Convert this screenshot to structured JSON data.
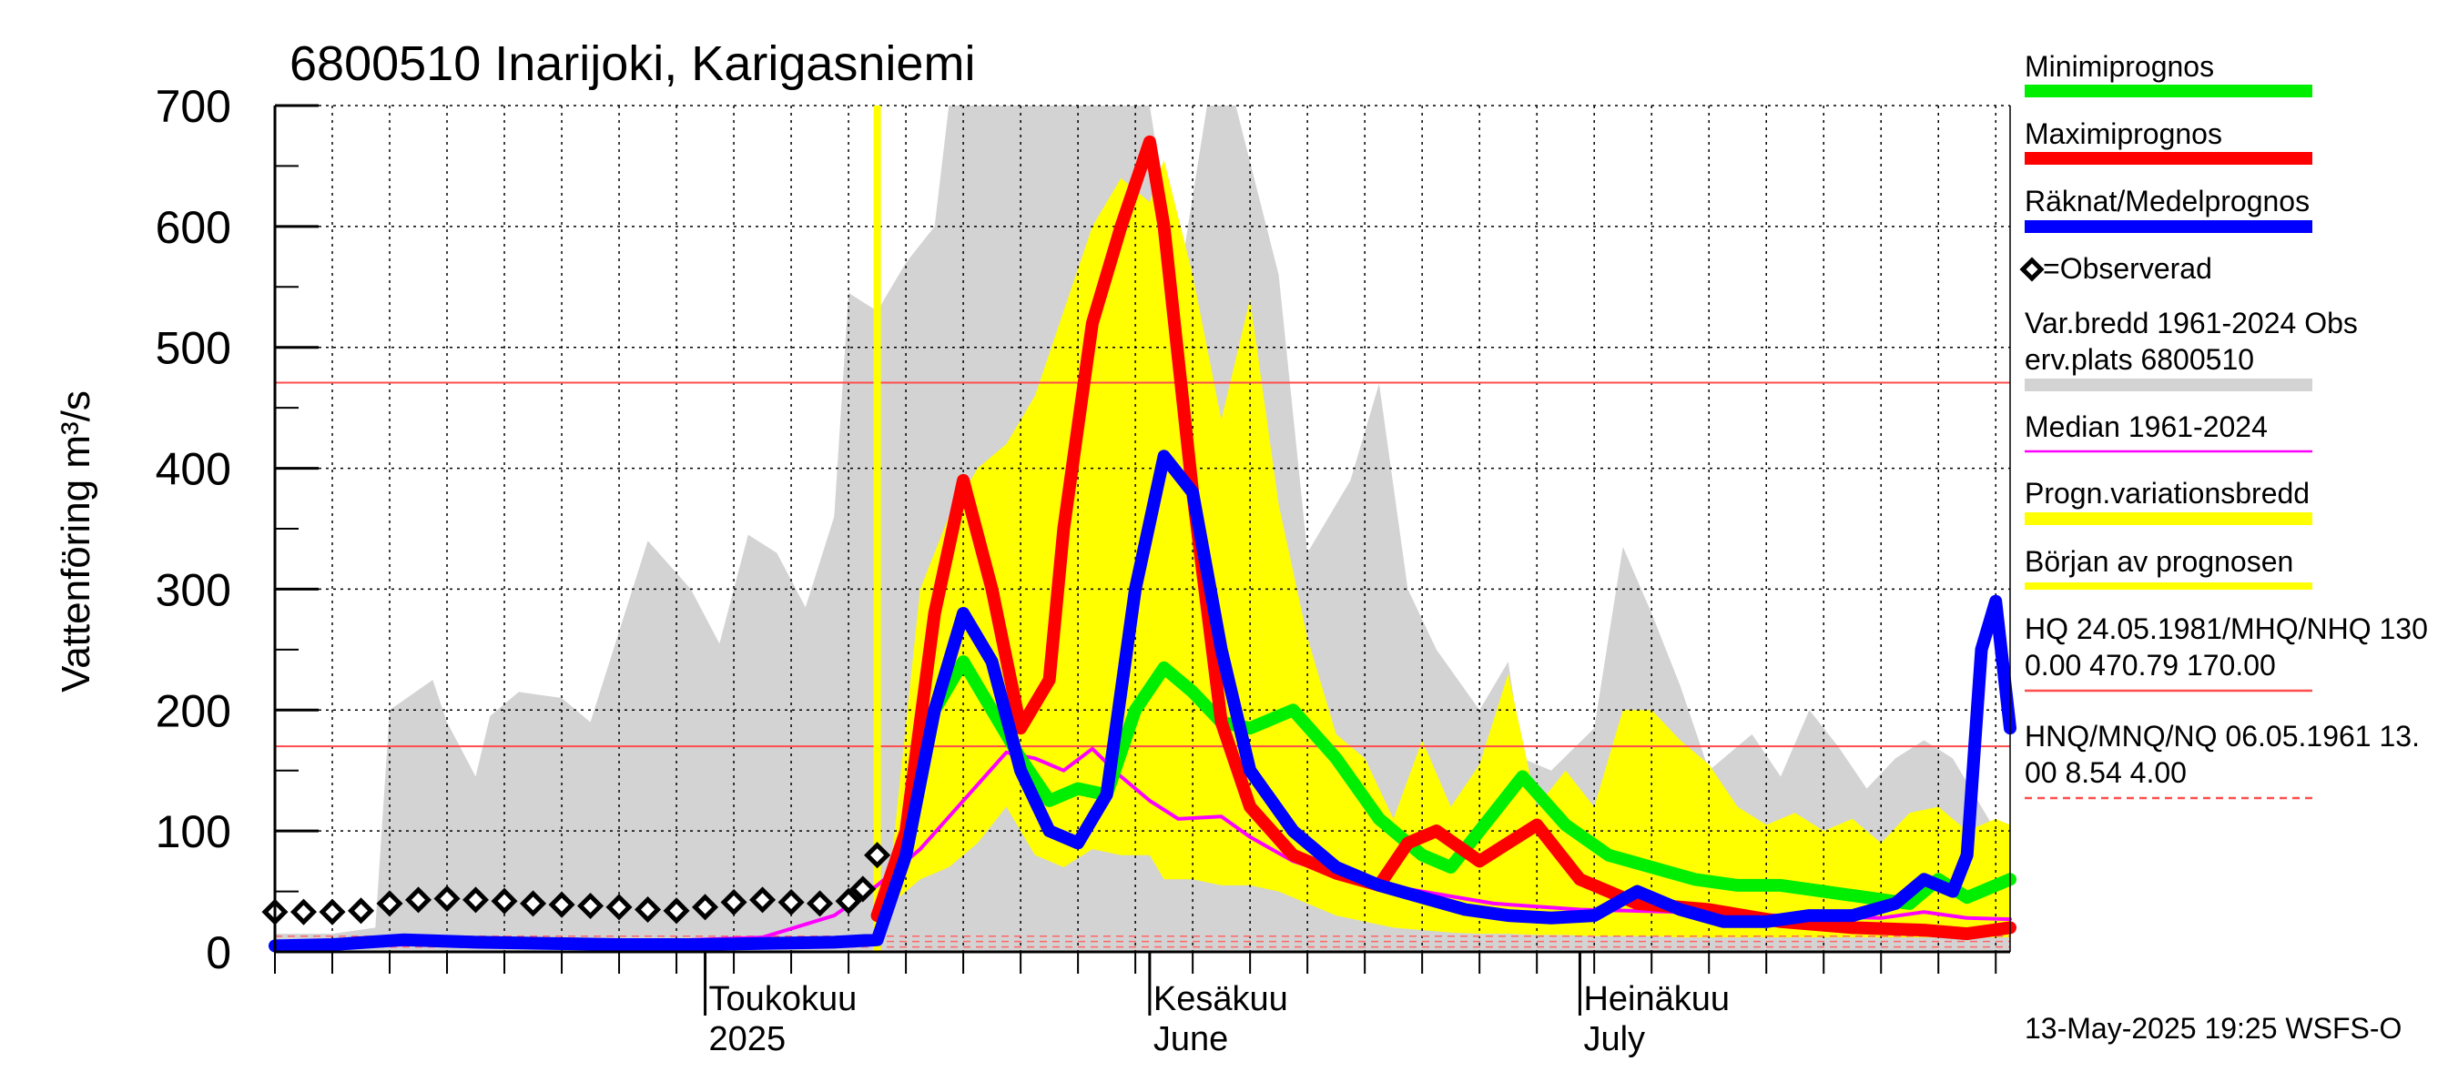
{
  "chart_data": {
    "type": "line",
    "title": "6800510 Inarijoki, Karigasniemi",
    "ylabel": "Vattenföring m³/s",
    "ylim": [
      0,
      700
    ],
    "yticks": [
      0,
      100,
      200,
      300,
      400,
      500,
      600,
      700
    ],
    "x_range": [
      "2025-04-01",
      "2025-07-31"
    ],
    "grid": true,
    "month_labels": [
      {
        "date": "2025-05-01",
        "line1": "Toukokuu",
        "line2": "2025"
      },
      {
        "date": "2025-06-01",
        "line1": "Kesäkuu",
        "line2": "June"
      },
      {
        "date": "2025-07-01",
        "line1": "Heinäkuu",
        "line2": "July"
      }
    ],
    "forecast_start": "2025-05-13",
    "reference_lines": [
      {
        "name": "MHQ",
        "value": 470.79,
        "color": "#ff4d4d"
      },
      {
        "name": "NHQ",
        "value": 170.0,
        "color": "#ff4d4d"
      }
    ],
    "series": [
      {
        "name": "Var.bredd 1961-2024 Obs erv.plats 6800510",
        "kind": "band",
        "color": "#d3d3d3",
        "x": [
          "2025-04-01",
          "2025-04-05",
          "2025-04-08",
          "2025-04-09",
          "2025-04-12",
          "2025-04-13",
          "2025-04-15",
          "2025-04-16",
          "2025-04-18",
          "2025-04-21",
          "2025-04-23",
          "2025-04-27",
          "2025-04-30",
          "2025-05-02",
          "2025-05-04",
          "2025-05-06",
          "2025-05-08",
          "2025-05-10",
          "2025-05-11",
          "2025-05-13",
          "2025-05-15",
          "2025-05-17",
          "2025-05-18",
          "2025-05-20",
          "2025-05-25",
          "2025-05-30",
          "2025-06-01",
          "2025-06-03",
          "2025-06-05",
          "2025-06-07",
          "2025-06-10",
          "2025-06-12",
          "2025-06-15",
          "2025-06-17",
          "2025-06-19",
          "2025-06-21",
          "2025-06-24",
          "2025-06-26",
          "2025-06-27",
          "2025-06-29",
          "2025-07-02",
          "2025-07-04",
          "2025-07-06",
          "2025-07-08",
          "2025-07-10",
          "2025-07-13",
          "2025-07-15",
          "2025-07-17",
          "2025-07-19",
          "2025-07-21",
          "2025-07-23",
          "2025-07-25",
          "2025-07-27",
          "2025-07-29",
          "2025-07-31"
        ],
        "upper": [
          15,
          15,
          20,
          200,
          225,
          190,
          145,
          195,
          215,
          210,
          190,
          340,
          300,
          255,
          345,
          330,
          285,
          360,
          545,
          530,
          570,
          600,
          700,
          700,
          700,
          700,
          700,
          550,
          700,
          700,
          560,
          330,
          390,
          470,
          300,
          250,
          200,
          240,
          160,
          150,
          185,
          335,
          280,
          220,
          150,
          180,
          145,
          200,
          170,
          135,
          160,
          175,
          160,
          120,
          80
        ],
        "lower": [
          0,
          0,
          0,
          0,
          0,
          0,
          0,
          0,
          0,
          0,
          0,
          0,
          0,
          0,
          0,
          0,
          0,
          0,
          0,
          0,
          0,
          0,
          0,
          0,
          0,
          0,
          0,
          0,
          0,
          0,
          0,
          0,
          0,
          0,
          0,
          0,
          0,
          0,
          0,
          0,
          0,
          0,
          0,
          0,
          0,
          0,
          0,
          0,
          0,
          0,
          0,
          0,
          0,
          0,
          0
        ]
      },
      {
        "name": "Progn.variationsbredd",
        "kind": "band",
        "color": "#ffff00",
        "x": [
          "2025-05-13",
          "2025-05-14",
          "2025-05-16",
          "2025-05-18",
          "2025-05-20",
          "2025-05-22",
          "2025-05-24",
          "2025-05-26",
          "2025-05-28",
          "2025-05-30",
          "2025-06-01",
          "2025-06-02",
          "2025-06-04",
          "2025-06-06",
          "2025-06-08",
          "2025-06-10",
          "2025-06-12",
          "2025-06-14",
          "2025-06-16",
          "2025-06-18",
          "2025-06-20",
          "2025-06-22",
          "2025-06-24",
          "2025-06-26",
          "2025-06-28",
          "2025-06-30",
          "2025-07-02",
          "2025-07-04",
          "2025-07-06",
          "2025-07-08",
          "2025-07-10",
          "2025-07-12",
          "2025-07-14",
          "2025-07-16",
          "2025-07-18",
          "2025-07-20",
          "2025-07-22",
          "2025-07-24",
          "2025-07-26",
          "2025-07-28",
          "2025-07-30",
          "2025-07-31"
        ],
        "upper": [
          40,
          75,
          300,
          360,
          400,
          420,
          460,
          530,
          600,
          640,
          620,
          655,
          560,
          440,
          540,
          370,
          260,
          180,
          160,
          110,
          175,
          120,
          155,
          230,
          120,
          150,
          120,
          200,
          200,
          175,
          155,
          120,
          105,
          115,
          100,
          110,
          90,
          115,
          120,
          100,
          110,
          105
        ],
        "lower": [
          30,
          40,
          60,
          70,
          90,
          120,
          80,
          70,
          85,
          80,
          80,
          60,
          60,
          55,
          55,
          50,
          40,
          30,
          25,
          20,
          18,
          16,
          15,
          15,
          14,
          14,
          13,
          13,
          13,
          12,
          12,
          12,
          12,
          12,
          12,
          12,
          12,
          12,
          12,
          12,
          12,
          12
        ]
      },
      {
        "name": "Observerad",
        "kind": "markers",
        "color": "#000000",
        "x": [
          "2025-04-01",
          "2025-04-03",
          "2025-04-05",
          "2025-04-07",
          "2025-04-09",
          "2025-04-11",
          "2025-04-13",
          "2025-04-15",
          "2025-04-17",
          "2025-04-19",
          "2025-04-21",
          "2025-04-23",
          "2025-04-25",
          "2025-04-27",
          "2025-04-29",
          "2025-05-01",
          "2025-05-03",
          "2025-05-05",
          "2025-05-07",
          "2025-05-09",
          "2025-05-11",
          "2025-05-12",
          "2025-05-13"
        ],
        "y": [
          33,
          33,
          33,
          34,
          40,
          43,
          44,
          43,
          42,
          40,
          39,
          38,
          37,
          35,
          34,
          37,
          41,
          43,
          41,
          40,
          42,
          52,
          80
        ]
      },
      {
        "name": "Median 1961-2024",
        "kind": "line",
        "color": "#ff00ff",
        "width": 4,
        "x": [
          "2025-04-01",
          "2025-04-10",
          "2025-04-20",
          "2025-04-28",
          "2025-05-05",
          "2025-05-10",
          "2025-05-13",
          "2025-05-16",
          "2025-05-19",
          "2025-05-22",
          "2025-05-24",
          "2025-05-26",
          "2025-05-28",
          "2025-05-30",
          "2025-06-01",
          "2025-06-03",
          "2025-06-06",
          "2025-06-08",
          "2025-06-11",
          "2025-06-15",
          "2025-06-20",
          "2025-06-25",
          "2025-07-01",
          "2025-07-08",
          "2025-07-15",
          "2025-07-22",
          "2025-07-25",
          "2025-07-28",
          "2025-07-31"
        ],
        "y": [
          2,
          6,
          7,
          9,
          12,
          30,
          55,
          85,
          125,
          165,
          160,
          150,
          168,
          145,
          125,
          110,
          112,
          95,
          75,
          60,
          50,
          40,
          35,
          33,
          30,
          28,
          33,
          28,
          27
        ]
      },
      {
        "name": "Minimiprognos",
        "kind": "line",
        "color": "#00ee00",
        "width": 14,
        "x": [
          "2025-05-13",
          "2025-05-15",
          "2025-05-17",
          "2025-05-19",
          "2025-05-21",
          "2025-05-23",
          "2025-05-25",
          "2025-05-27",
          "2025-05-29",
          "2025-05-31",
          "2025-06-02",
          "2025-06-04",
          "2025-06-06",
          "2025-06-08",
          "2025-06-11",
          "2025-06-14",
          "2025-06-17",
          "2025-06-20",
          "2025-06-22",
          "2025-06-24",
          "2025-06-27",
          "2025-06-30",
          "2025-07-03",
          "2025-07-06",
          "2025-07-09",
          "2025-07-12",
          "2025-07-15",
          "2025-07-18",
          "2025-07-21",
          "2025-07-24",
          "2025-07-26",
          "2025-07-28",
          "2025-07-31"
        ],
        "y": [
          30,
          80,
          200,
          240,
          200,
          160,
          125,
          135,
          130,
          200,
          235,
          215,
          190,
          185,
          200,
          160,
          110,
          80,
          70,
          100,
          145,
          105,
          80,
          70,
          60,
          55,
          55,
          50,
          45,
          40,
          60,
          45,
          60
        ]
      },
      {
        "name": "Maximiprognos",
        "kind": "line",
        "color": "#ff0000",
        "width": 14,
        "x": [
          "2025-05-13",
          "2025-05-15",
          "2025-05-17",
          "2025-05-19",
          "2025-05-21",
          "2025-05-23",
          "2025-05-25",
          "2025-05-26",
          "2025-05-28",
          "2025-05-30",
          "2025-06-01",
          "2025-06-02",
          "2025-06-04",
          "2025-06-06",
          "2025-06-08",
          "2025-06-11",
          "2025-06-14",
          "2025-06-17",
          "2025-06-19",
          "2025-06-21",
          "2025-06-24",
          "2025-06-26",
          "2025-06-28",
          "2025-07-01",
          "2025-07-05",
          "2025-07-10",
          "2025-07-15",
          "2025-07-20",
          "2025-07-25",
          "2025-07-28",
          "2025-07-31"
        ],
        "y": [
          30,
          100,
          280,
          390,
          300,
          185,
          225,
          350,
          520,
          600,
          670,
          600,
          380,
          190,
          120,
          80,
          65,
          55,
          90,
          100,
          75,
          90,
          105,
          60,
          40,
          35,
          25,
          20,
          18,
          15,
          20
        ]
      },
      {
        "name": "Räknat/Medelprognos",
        "kind": "line",
        "color": "#0000ff",
        "width": 14,
        "x": [
          "2025-04-01",
          "2025-04-05",
          "2025-04-10",
          "2025-04-15",
          "2025-04-20",
          "2025-04-25",
          "2025-04-30",
          "2025-05-05",
          "2025-05-10",
          "2025-05-13",
          "2025-05-15",
          "2025-05-17",
          "2025-05-19",
          "2025-05-21",
          "2025-05-23",
          "2025-05-25",
          "2025-05-27",
          "2025-05-29",
          "2025-05-31",
          "2025-06-02",
          "2025-06-04",
          "2025-06-06",
          "2025-06-08",
          "2025-06-11",
          "2025-06-14",
          "2025-06-17",
          "2025-06-20",
          "2025-06-23",
          "2025-06-26",
          "2025-06-29",
          "2025-07-02",
          "2025-07-05",
          "2025-07-08",
          "2025-07-11",
          "2025-07-14",
          "2025-07-17",
          "2025-07-20",
          "2025-07-23",
          "2025-07-25",
          "2025-07-27",
          "2025-07-28",
          "2025-07-29",
          "2025-07-30",
          "2025-07-31"
        ],
        "y": [
          5,
          6,
          10,
          8,
          7,
          6,
          6,
          7,
          8,
          10,
          80,
          200,
          280,
          240,
          150,
          100,
          90,
          130,
          300,
          410,
          380,
          250,
          150,
          100,
          70,
          55,
          45,
          35,
          30,
          28,
          30,
          50,
          35,
          25,
          25,
          30,
          30,
          40,
          60,
          50,
          80,
          250,
          290,
          185
        ]
      }
    ],
    "legend": [
      {
        "label": "Minimiprognos",
        "color": "#00ee00",
        "style": "thick"
      },
      {
        "label": "Maximiprognos",
        "color": "#ff0000",
        "style": "thick"
      },
      {
        "label": "Räknat/Medelprognos",
        "color": "#0000ff",
        "style": "thick"
      },
      {
        "label": "=Observerad",
        "color": "#000000",
        "style": "marker"
      },
      {
        "label": "Var.bredd 1961-2024   Obs",
        "label2": "erv.plats 6800510",
        "color": "#d3d3d3",
        "style": "thick"
      },
      {
        "label": "Median 1961-2024",
        "color": "#ff00ff",
        "style": "thin"
      },
      {
        "label": "Progn.variationsbredd",
        "color": "#ffff00",
        "style": "thick"
      },
      {
        "label": "Början av prognosen",
        "color": "#ffff00",
        "style": "medium"
      },
      {
        "label": "HQ 24.05.1981/MHQ/NHQ 130",
        "label2": "0.00 470.79 170.00",
        "color": "#ff4d4d",
        "style": "thin"
      },
      {
        "label": "HNQ/MNQ/NQ 06.05.1961 13.",
        "label2": "00 8.54 4.00",
        "color": "#ff4d4d",
        "style": "dashed"
      }
    ]
  },
  "footer": "13-May-2025 19:25 WSFS-O"
}
